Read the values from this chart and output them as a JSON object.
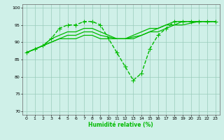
{
  "xlabel": "Humidité relative (%)",
  "ylabel": "",
  "xlim": [
    -0.5,
    23.5
  ],
  "ylim": [
    69,
    101
  ],
  "yticks": [
    70,
    75,
    80,
    85,
    90,
    95,
    100
  ],
  "xticks": [
    0,
    1,
    2,
    3,
    4,
    5,
    6,
    7,
    8,
    9,
    10,
    11,
    12,
    13,
    14,
    15,
    16,
    17,
    18,
    19,
    20,
    21,
    22,
    23
  ],
  "bg_color": "#cff0e8",
  "grid_color": "#99ccbb",
  "line_color": "#00bb00",
  "lines": [
    {
      "x": [
        0,
        1,
        2,
        3,
        4,
        5,
        6,
        7,
        8,
        9,
        10,
        11,
        12,
        13,
        14,
        15,
        16,
        17,
        18,
        19,
        20,
        21,
        22,
        23
      ],
      "y": [
        87,
        88,
        89,
        91,
        94,
        95,
        95,
        96,
        96,
        95,
        91,
        87,
        83,
        79,
        81,
        88,
        92,
        94,
        96,
        96,
        96,
        96,
        96,
        96
      ],
      "marker": "+",
      "linestyle": "--",
      "linewidth": 1.0,
      "markersize": 4
    },
    {
      "x": [
        0,
        1,
        2,
        3,
        4,
        5,
        6,
        7,
        8,
        9,
        10,
        11,
        12,
        13,
        14,
        15,
        16,
        17,
        18,
        19,
        20,
        21,
        22,
        23
      ],
      "y": [
        87,
        88,
        89,
        91,
        92,
        93,
        93,
        94,
        94,
        93,
        92,
        91,
        91,
        92,
        93,
        94,
        94,
        95,
        96,
        96,
        96,
        96,
        96,
        96
      ],
      "marker": null,
      "linestyle": "-",
      "linewidth": 0.9,
      "markersize": 0
    },
    {
      "x": [
        0,
        1,
        2,
        3,
        4,
        5,
        6,
        7,
        8,
        9,
        10,
        11,
        12,
        13,
        14,
        15,
        16,
        17,
        18,
        19,
        20,
        21,
        22,
        23
      ],
      "y": [
        87,
        88,
        89,
        90,
        91,
        92,
        92,
        93,
        93,
        92,
        91.5,
        91,
        91,
        91.5,
        92,
        93,
        94,
        95,
        95,
        96,
        96,
        96,
        96,
        96
      ],
      "marker": null,
      "linestyle": "-",
      "linewidth": 0.9,
      "markersize": 0
    },
    {
      "x": [
        0,
        1,
        2,
        3,
        4,
        5,
        6,
        7,
        8,
        9,
        10,
        11,
        12,
        13,
        14,
        15,
        16,
        17,
        18,
        19,
        20,
        21,
        22,
        23
      ],
      "y": [
        87,
        88,
        89,
        90,
        91,
        91,
        91,
        92,
        92,
        91,
        91,
        91,
        91,
        91,
        92,
        93,
        93,
        94,
        95,
        95,
        95.5,
        96,
        96,
        96
      ],
      "marker": null,
      "linestyle": "-",
      "linewidth": 0.9,
      "markersize": 0
    }
  ]
}
